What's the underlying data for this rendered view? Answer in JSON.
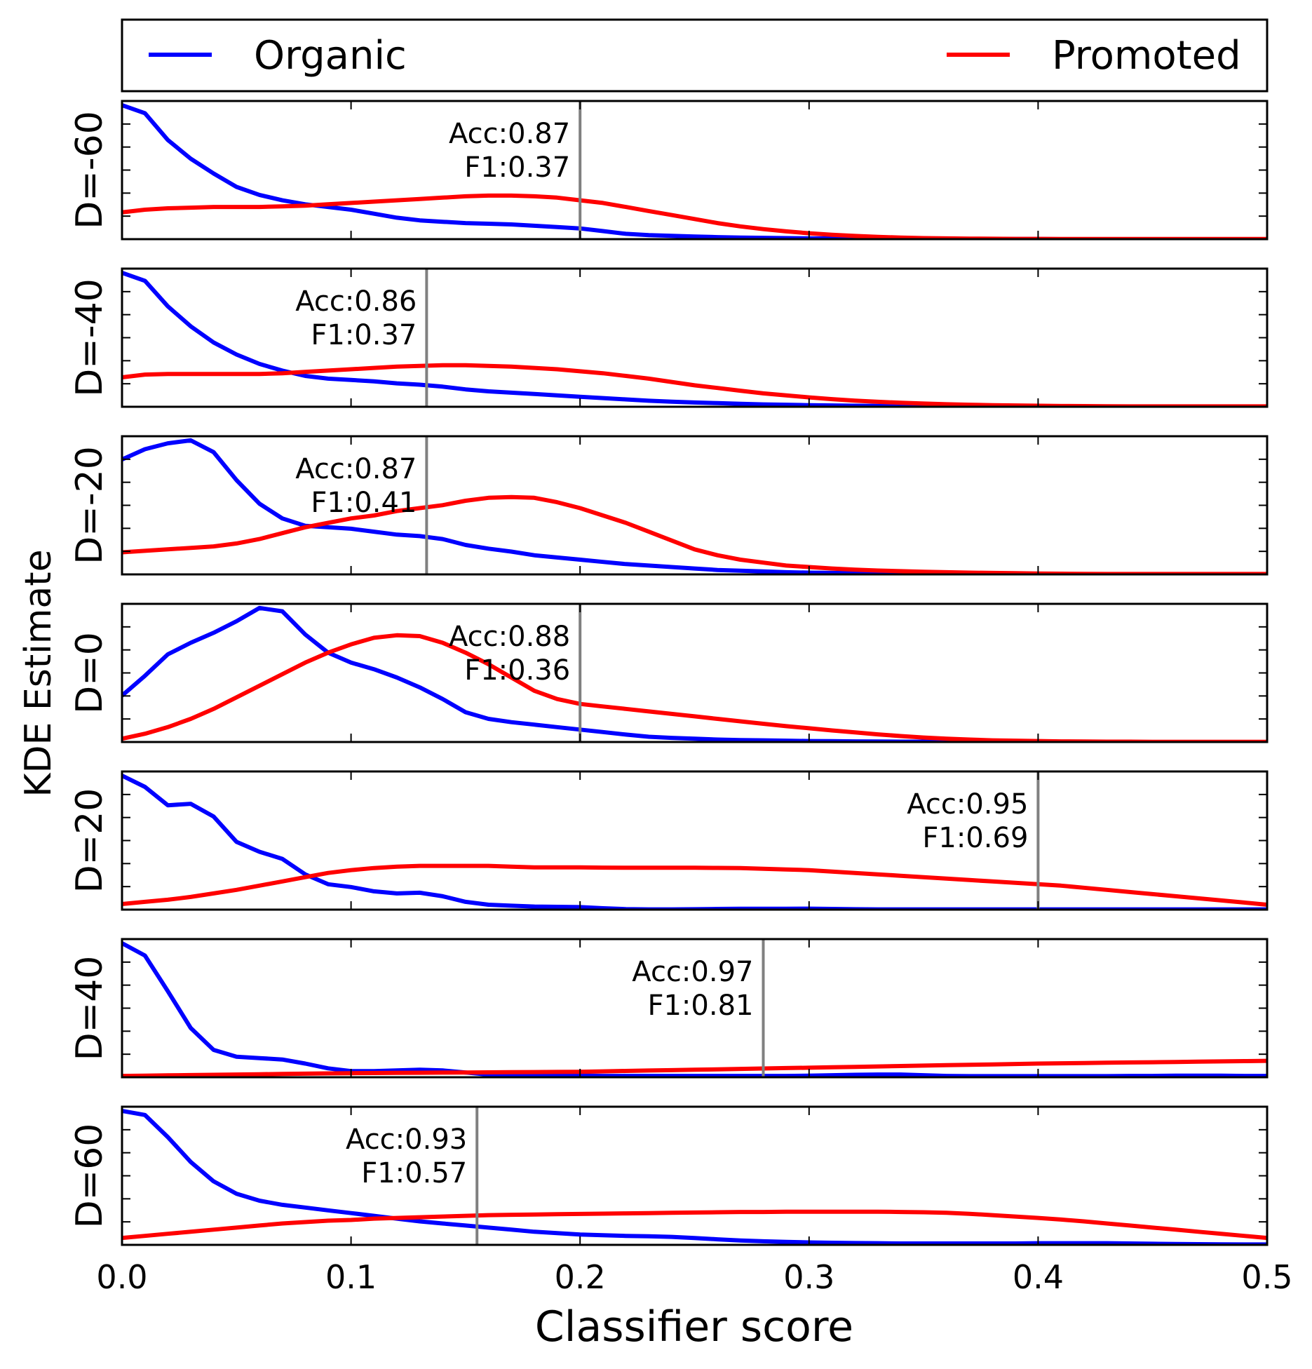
{
  "chart_data": {
    "type": "line",
    "title": "",
    "xlabel": "Classifier score",
    "ylabel": "KDE Estimate",
    "xlim": [
      0.0,
      0.5
    ],
    "xticks": [
      "0.0",
      "0.1",
      "0.2",
      "0.3",
      "0.4",
      "0.5"
    ],
    "legend": {
      "placement": "top",
      "entries": [
        {
          "name": "Organic",
          "color": "#0000ff"
        },
        {
          "name": "Promoted",
          "color": "#ff0000"
        }
      ]
    },
    "threshold_color": "#808080",
    "x": [
      0.0,
      0.01,
      0.02,
      0.03,
      0.04,
      0.05,
      0.06,
      0.07,
      0.08,
      0.09,
      0.1,
      0.11,
      0.12,
      0.13,
      0.14,
      0.15,
      0.16,
      0.17,
      0.18,
      0.19,
      0.2,
      0.21,
      0.22,
      0.23,
      0.24,
      0.25,
      0.26,
      0.27,
      0.28,
      0.29,
      0.3,
      0.31,
      0.32,
      0.33,
      0.34,
      0.35,
      0.36,
      0.37,
      0.38,
      0.39,
      0.4,
      0.41,
      0.42,
      0.43,
      0.44,
      0.45,
      0.46,
      0.47,
      0.48,
      0.49,
      0.5
    ],
    "panels": [
      {
        "label": "D=-60",
        "threshold": 0.2,
        "acc": "Acc:0.87",
        "f1": "F1:0.37",
        "series": [
          {
            "name": "Organic",
            "values": [
              1.0,
              0.94,
              0.74,
              0.6,
              0.49,
              0.39,
              0.33,
              0.29,
              0.26,
              0.24,
              0.22,
              0.19,
              0.16,
              0.14,
              0.13,
              0.12,
              0.115,
              0.11,
              0.1,
              0.09,
              0.08,
              0.06,
              0.04,
              0.03,
              0.025,
              0.02,
              0.015,
              0.012,
              0.01,
              0.008,
              0.006,
              0.005,
              0.004,
              0.003,
              0.002,
              0.002,
              0.001,
              0.001,
              0.001,
              0.001,
              0.001,
              0,
              0,
              0,
              0,
              0,
              0,
              0,
              0,
              0,
              0
            ]
          },
          {
            "name": "Promoted",
            "values": [
              0.2,
              0.22,
              0.23,
              0.235,
              0.24,
              0.24,
              0.24,
              0.245,
              0.25,
              0.26,
              0.27,
              0.28,
              0.29,
              0.3,
              0.31,
              0.32,
              0.325,
              0.325,
              0.32,
              0.31,
              0.29,
              0.27,
              0.24,
              0.21,
              0.18,
              0.15,
              0.12,
              0.095,
              0.075,
              0.058,
              0.044,
              0.033,
              0.024,
              0.017,
              0.012,
              0.008,
              0.006,
              0.004,
              0.003,
              0.002,
              0.002,
              0.001,
              0.001,
              0.001,
              0.001,
              0.001,
              0.001,
              0.001,
              0.001,
              0.001,
              0.001
            ]
          }
        ]
      },
      {
        "label": "D=-40",
        "threshold": 0.133,
        "acc": "Acc:0.86",
        "f1": "F1:0.37",
        "series": [
          {
            "name": "Organic",
            "values": [
              1.0,
              0.94,
              0.75,
              0.6,
              0.48,
              0.39,
              0.32,
              0.27,
              0.23,
              0.21,
              0.2,
              0.19,
              0.175,
              0.165,
              0.15,
              0.13,
              0.115,
              0.105,
              0.095,
              0.085,
              0.075,
              0.065,
              0.055,
              0.045,
              0.038,
              0.032,
              0.027,
              0.022,
              0.018,
              0.015,
              0.012,
              0.01,
              0.008,
              0.007,
              0.006,
              0.005,
              0.004,
              0.003,
              0.003,
              0.002,
              0.002,
              0.001,
              0.001,
              0.001,
              0.001,
              0.001,
              0.001,
              0.001,
              0.001,
              0.001,
              0.001
            ]
          },
          {
            "name": "Promoted",
            "values": [
              0.22,
              0.24,
              0.245,
              0.245,
              0.245,
              0.245,
              0.245,
              0.25,
              0.26,
              0.27,
              0.28,
              0.29,
              0.3,
              0.305,
              0.31,
              0.31,
              0.305,
              0.3,
              0.29,
              0.28,
              0.265,
              0.25,
              0.23,
              0.21,
              0.185,
              0.16,
              0.14,
              0.12,
              0.1,
              0.085,
              0.07,
              0.057,
              0.046,
              0.037,
              0.03,
              0.024,
              0.019,
              0.015,
              0.012,
              0.01,
              0.008,
              0.006,
              0.005,
              0.004,
              0.003,
              0.003,
              0.003,
              0.003,
              0.003,
              0.003,
              0.003
            ]
          }
        ]
      },
      {
        "label": "D=-20",
        "threshold": 0.133,
        "acc": "Acc:0.87",
        "f1": "F1:0.41",
        "series": [
          {
            "name": "Organic",
            "values": [
              0.78,
              0.85,
              0.89,
              0.91,
              0.83,
              0.64,
              0.48,
              0.38,
              0.33,
              0.32,
              0.31,
              0.29,
              0.27,
              0.26,
              0.24,
              0.2,
              0.175,
              0.155,
              0.13,
              0.115,
              0.1,
              0.085,
              0.07,
              0.06,
              0.05,
              0.04,
              0.03,
              0.025,
              0.02,
              0.015,
              0.012,
              0.01,
              0.008,
              0.006,
              0.005,
              0.004,
              0.003,
              0.002,
              0.002,
              0.002,
              0.002,
              0.001,
              0.001,
              0.001,
              0.001,
              0.001,
              0.001,
              0.001,
              0.001,
              0.001,
              0.001
            ]
          },
          {
            "name": "Promoted",
            "values": [
              0.15,
              0.16,
              0.17,
              0.18,
              0.19,
              0.21,
              0.24,
              0.28,
              0.32,
              0.35,
              0.38,
              0.4,
              0.43,
              0.45,
              0.47,
              0.5,
              0.52,
              0.525,
              0.52,
              0.49,
              0.45,
              0.4,
              0.35,
              0.29,
              0.23,
              0.17,
              0.13,
              0.1,
              0.08,
              0.06,
              0.05,
              0.04,
              0.032,
              0.026,
              0.022,
              0.018,
              0.015,
              0.012,
              0.01,
              0.008,
              0.006,
              0.005,
              0.004,
              0.003,
              0.003,
              0.003,
              0.003,
              0.003,
              0.003,
              0.003,
              0.003
            ]
          }
        ]
      },
      {
        "label": "D=0",
        "threshold": 0.2,
        "acc": "Acc:0.88",
        "f1": "F1:0.36",
        "series": [
          {
            "name": "Organic",
            "values": [
              0.28,
              0.4,
              0.53,
              0.6,
              0.66,
              0.73,
              0.81,
              0.79,
              0.65,
              0.54,
              0.48,
              0.44,
              0.39,
              0.33,
              0.26,
              0.18,
              0.14,
              0.12,
              0.105,
              0.09,
              0.075,
              0.06,
              0.045,
              0.032,
              0.025,
              0.02,
              0.015,
              0.012,
              0.01,
              0.008,
              0.006,
              0.005,
              0.004,
              0.003,
              0.002,
              0.002,
              0.001,
              0.001,
              0.001,
              0.001,
              0.001,
              0,
              0,
              0,
              0,
              0,
              0,
              0,
              0,
              0,
              0
            ]
          },
          {
            "name": "Promoted",
            "values": [
              0.02,
              0.05,
              0.09,
              0.14,
              0.2,
              0.27,
              0.34,
              0.41,
              0.48,
              0.54,
              0.59,
              0.63,
              0.645,
              0.64,
              0.6,
              0.54,
              0.47,
              0.39,
              0.31,
              0.26,
              0.23,
              0.215,
              0.2,
              0.185,
              0.17,
              0.155,
              0.14,
              0.125,
              0.11,
              0.096,
              0.083,
              0.07,
              0.058,
              0.046,
              0.036,
              0.027,
              0.02,
              0.015,
              0.01,
              0.008,
              0.006,
              0.004,
              0.003,
              0.002,
              0.002,
              0.001,
              0.001,
              0.001,
              0.001,
              0.001,
              0.001
            ]
          }
        ]
      },
      {
        "label": "D=20",
        "threshold": 0.4,
        "acc": "Acc:0.95",
        "f1": "F1:0.69",
        "series": [
          {
            "name": "Organic",
            "values": [
              0.95,
              0.87,
              0.74,
              0.75,
              0.66,
              0.48,
              0.41,
              0.36,
              0.25,
              0.18,
              0.16,
              0.13,
              0.115,
              0.12,
              0.095,
              0.055,
              0.035,
              0.028,
              0.022,
              0.02,
              0.018,
              0.01,
              0.004,
              0.002,
              0.002,
              0.003,
              0.005,
              0.006,
              0.006,
              0.006,
              0.007,
              0.005,
              0.003,
              0.002,
              0.002,
              0.002,
              0.002,
              0.002,
              0.002,
              0.002,
              0.002,
              0.002,
              0.002,
              0.002,
              0.002,
              0.002,
              0.002,
              0.002,
              0.002,
              0.002,
              0.002
            ]
          },
          {
            "name": "Promoted",
            "values": [
              0.04,
              0.055,
              0.07,
              0.09,
              0.115,
              0.14,
              0.17,
              0.2,
              0.23,
              0.26,
              0.28,
              0.295,
              0.305,
              0.31,
              0.31,
              0.31,
              0.31,
              0.305,
              0.3,
              0.3,
              0.3,
              0.298,
              0.297,
              0.297,
              0.297,
              0.297,
              0.296,
              0.295,
              0.29,
              0.285,
              0.28,
              0.27,
              0.26,
              0.25,
              0.24,
              0.23,
              0.22,
              0.21,
              0.2,
              0.19,
              0.18,
              0.17,
              0.155,
              0.14,
              0.125,
              0.11,
              0.095,
              0.08,
              0.065,
              0.05,
              0.035
            ]
          }
        ]
      },
      {
        "label": "D=40",
        "threshold": 0.28,
        "acc": "Acc:0.97",
        "f1": "F1:0.81",
        "series": [
          {
            "name": "Organic",
            "values": [
              0.98,
              0.89,
              0.63,
              0.36,
              0.2,
              0.15,
              0.14,
              0.13,
              0.1,
              0.065,
              0.045,
              0.045,
              0.05,
              0.055,
              0.05,
              0.035,
              0.02,
              0.015,
              0.015,
              0.012,
              0.012,
              0.01,
              0.01,
              0.01,
              0.01,
              0.01,
              0.01,
              0.01,
              0.01,
              0.01,
              0.012,
              0.015,
              0.018,
              0.02,
              0.02,
              0.015,
              0.01,
              0.008,
              0.008,
              0.008,
              0.008,
              0.008,
              0.008,
              0.008,
              0.01,
              0.01,
              0.012,
              0.012,
              0.012,
              0.01,
              0.01
            ]
          },
          {
            "name": "Promoted",
            "values": [
              0.01,
              0.012,
              0.014,
              0.016,
              0.018,
              0.02,
              0.022,
              0.024,
              0.026,
              0.028,
              0.03,
              0.031,
              0.032,
              0.033,
              0.034,
              0.035,
              0.036,
              0.037,
              0.038,
              0.039,
              0.04,
              0.043,
              0.046,
              0.049,
              0.052,
              0.055,
              0.058,
              0.061,
              0.064,
              0.067,
              0.07,
              0.073,
              0.076,
              0.079,
              0.082,
              0.085,
              0.088,
              0.091,
              0.094,
              0.097,
              0.1,
              0.102,
              0.104,
              0.106,
              0.108,
              0.11,
              0.112,
              0.114,
              0.116,
              0.118,
              0.12
            ]
          }
        ]
      },
      {
        "label": "D=60",
        "threshold": 0.155,
        "acc": "Acc:0.93",
        "f1": "F1:0.57",
        "series": [
          {
            "name": "Organic",
            "values": [
              0.97,
              0.94,
              0.78,
              0.6,
              0.46,
              0.37,
              0.32,
              0.29,
              0.27,
              0.25,
              0.23,
              0.21,
              0.19,
              0.17,
              0.155,
              0.14,
              0.125,
              0.11,
              0.095,
              0.085,
              0.075,
              0.07,
              0.065,
              0.062,
              0.058,
              0.05,
              0.04,
              0.032,
              0.026,
              0.022,
              0.018,
              0.015,
              0.013,
              0.012,
              0.01,
              0.01,
              0.01,
              0.01,
              0.01,
              0.01,
              0.012,
              0.012,
              0.012,
              0.012,
              0.01,
              0.008,
              0.006,
              0.005,
              0.004,
              0.003,
              0.003
            ]
          },
          {
            "name": "Promoted",
            "values": [
              0.05,
              0.065,
              0.08,
              0.095,
              0.11,
              0.125,
              0.14,
              0.155,
              0.165,
              0.175,
              0.18,
              0.19,
              0.195,
              0.2,
              0.205,
              0.21,
              0.215,
              0.218,
              0.22,
              0.222,
              0.224,
              0.226,
              0.228,
              0.23,
              0.232,
              0.234,
              0.236,
              0.238,
              0.238,
              0.24,
              0.24,
              0.24,
              0.24,
              0.24,
              0.238,
              0.236,
              0.232,
              0.225,
              0.215,
              0.205,
              0.195,
              0.183,
              0.17,
              0.155,
              0.14,
              0.125,
              0.11,
              0.095,
              0.08,
              0.065,
              0.05
            ]
          }
        ]
      }
    ]
  }
}
